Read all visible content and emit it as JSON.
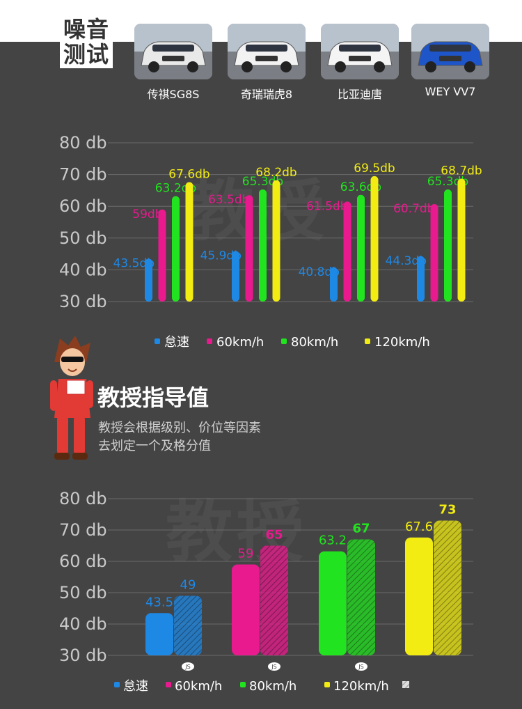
{
  "header": {
    "title_line1": "噪音",
    "title_line2": "测试"
  },
  "cars": [
    {
      "name": "传祺SG8S",
      "color": "#e9e9e9"
    },
    {
      "name": "奇瑞瑞虎8",
      "color": "#f2f2f2"
    },
    {
      "name": "比亚迪唐",
      "color": "#f4f4f4"
    },
    {
      "name": "WEY VV7",
      "color": "#1e55c8"
    }
  ],
  "watermark": "教授100",
  "professor": {
    "title": "教授指导值",
    "desc_line1": "教授会根据级别、价位等因素",
    "desc_line2": "去划定一个及格分值"
  },
  "colors": {
    "idle": "#1e88e5",
    "s60": "#e9198e",
    "s80": "#22e31f",
    "s120": "#f2ec12"
  },
  "chart_data": [
    {
      "type": "bar",
      "categories": [
        "传祺SG8S",
        "奇瑞瑞虎8",
        "比亚迪唐",
        "WEY VV7"
      ],
      "y_ticks": [
        "80 db",
        "70 db",
        "60 db",
        "50 db",
        "40 db",
        "30 db"
      ],
      "ylim": [
        30,
        80
      ],
      "grid": true,
      "legend_position": "bottom",
      "series": [
        {
          "name": "怠速",
          "color": "#1e88e5",
          "values": [
            43.5,
            45.9,
            40.8,
            44.3
          ],
          "labels": [
            "43.5db",
            "45.9db",
            "40.8db",
            "44.3db"
          ]
        },
        {
          "name": "60km/h",
          "color": "#e9198e",
          "values": [
            59,
            63.5,
            61.5,
            60.7
          ],
          "labels": [
            "59db",
            "63.5db",
            "61.5db",
            "60.7db"
          ]
        },
        {
          "name": "80km/h",
          "color": "#22e31f",
          "values": [
            63.2,
            65.3,
            63.6,
            65.3
          ],
          "labels": [
            "63.2db",
            "65.3db",
            "63.6db",
            "65.3db"
          ]
        },
        {
          "name": "120km/h",
          "color": "#f2ec12",
          "values": [
            67.6,
            68.2,
            69.5,
            68.7
          ],
          "labels": [
            "67.6db",
            "68.2db",
            "69.5db",
            "68.7db"
          ]
        }
      ]
    },
    {
      "type": "bar",
      "y_ticks": [
        "80 db",
        "70 db",
        "60 db",
        "50 db",
        "40 db",
        "30 db"
      ],
      "ylim": [
        30,
        80
      ],
      "grid": true,
      "legend_position": "bottom",
      "groups": [
        {
          "name": "怠速",
          "color": "#1e88e5",
          "measured": 43.5,
          "measured_label": "43.5",
          "guide": 49,
          "guide_label": "49",
          "badge": "JS"
        },
        {
          "name": "60km/h",
          "color": "#e9198e",
          "measured": 59,
          "measured_label": "59",
          "guide": 65,
          "guide_label": "65",
          "badge": "JS"
        },
        {
          "name": "80km/h",
          "color": "#22e31f",
          "measured": 63.2,
          "measured_label": "63.2",
          "guide": 67,
          "guide_label": "67",
          "badge": "JS"
        },
        {
          "name": "120km/h",
          "color": "#f2ec12",
          "measured": 67.6,
          "measured_label": "67.6",
          "guide": 73,
          "guide_label": "73",
          "badge": ""
        }
      ],
      "legend": [
        {
          "name": "怠速",
          "color": "#1e88e5"
        },
        {
          "name": "60km/h",
          "color": "#e9198e"
        },
        {
          "name": "80km/h",
          "color": "#22e31f"
        },
        {
          "name": "120km/h",
          "color": "#f2ec12"
        }
      ]
    }
  ]
}
